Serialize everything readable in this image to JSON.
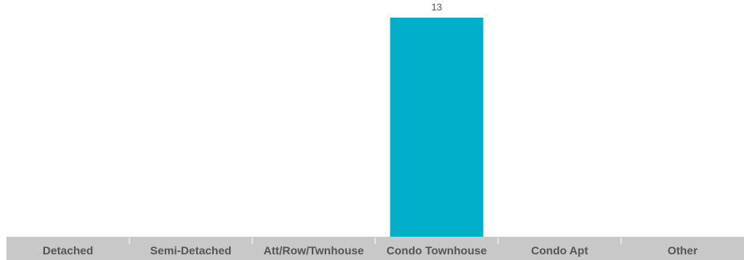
{
  "chart_data": {
    "type": "bar",
    "categories": [
      "Detached",
      "Semi-Detached",
      "Att/Row/Twnhouse",
      "Condo Townhouse",
      "Condo Apt",
      "Other"
    ],
    "values": [
      0,
      0,
      0,
      13,
      0,
      0
    ],
    "data_labels": [
      "",
      "",
      "",
      "13",
      "",
      ""
    ],
    "title": "",
    "xlabel": "",
    "ylabel": "",
    "ylim": [
      0,
      13
    ],
    "grid": false,
    "colors": {
      "bar": "#00aec7",
      "axis_band": "#c8c8c8",
      "separator": "#ffffff",
      "text": "#555555"
    }
  }
}
